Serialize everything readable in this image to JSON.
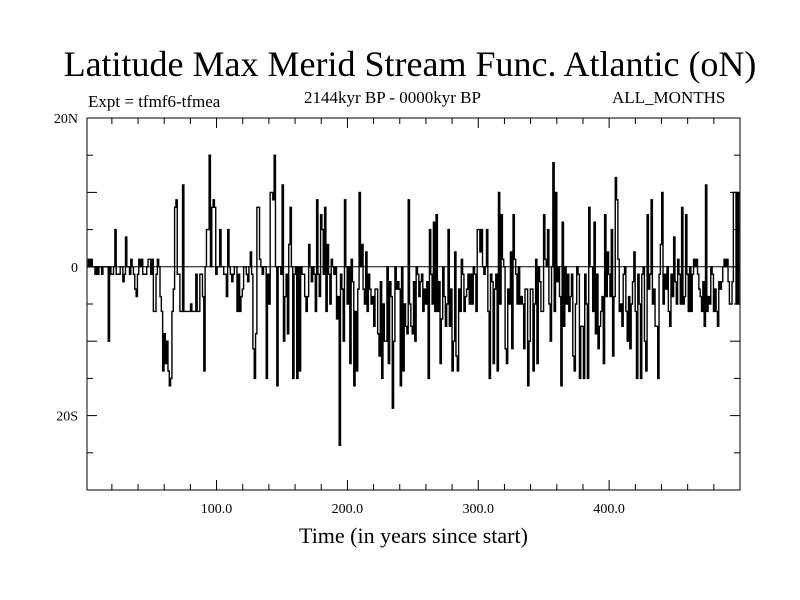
{
  "chart_data": {
    "type": "line",
    "title": "Latitude Max Merid Stream Func. Atlantic (oN)",
    "subtitle_left": "Expt = tfmf6-tfmea",
    "subtitle_center": "2144kyr BP - 0000kyr BP",
    "subtitle_right": "ALL_MONTHS",
    "xlabel": "Time (in years since start)",
    "ylabel": "",
    "xlim": [
      1,
      500
    ],
    "ylim": [
      -30,
      20
    ],
    "x_ticks": [
      100,
      200,
      300,
      400
    ],
    "x_tick_labels": [
      "100.0",
      "200.0",
      "300.0",
      "400.0"
    ],
    "y_ticks": [
      20,
      0,
      -20
    ],
    "y_tick_labels": [
      "20N",
      "0",
      "20S"
    ],
    "step": true,
    "grid": false,
    "series": [
      {
        "values": [
          0,
          1,
          0,
          1,
          0,
          0,
          -1,
          0,
          -1,
          0,
          0,
          -1,
          0,
          0,
          0,
          0,
          -10,
          0,
          -1,
          -1,
          0,
          5,
          -1,
          -1,
          -1,
          0,
          0,
          -2,
          -1,
          4,
          0,
          0,
          -1,
          1,
          0,
          -1,
          -3,
          -4,
          -1,
          1,
          0,
          1,
          -1,
          -1,
          -1,
          0,
          1,
          1,
          -1,
          1,
          -6,
          -6,
          -1,
          1,
          0,
          -4,
          -6,
          -14,
          -9,
          -13,
          -10,
          -14,
          -16,
          -15,
          -6,
          -3,
          8,
          9,
          -1,
          -1,
          -6,
          -6,
          11,
          -6,
          -6,
          -6,
          -6,
          -6,
          -5,
          -6,
          -6,
          -6,
          -1,
          -6,
          -6,
          -1,
          -1,
          -4,
          -14,
          0,
          5,
          5,
          15,
          0,
          8,
          9,
          8,
          -1,
          0,
          0,
          5,
          0,
          0,
          -1,
          -1,
          -4,
          5,
          0,
          -1,
          -2,
          -1,
          0,
          0,
          -6,
          -1,
          -6,
          -4,
          -3,
          0,
          0,
          -1,
          -2,
          0,
          2,
          -1,
          -11,
          -15,
          -9,
          8,
          8,
          1,
          0,
          -1,
          0,
          0,
          -15,
          -1,
          -5,
          10,
          10,
          9,
          15,
          0,
          -16,
          0,
          0,
          -1,
          11,
          -10,
          -4,
          -1,
          -9,
          3,
          8,
          0,
          -15,
          -1,
          0,
          -15,
          0,
          -14,
          0,
          -1,
          -1,
          -4,
          -6,
          -4,
          3,
          0,
          -2,
          0,
          -1,
          -6,
          9,
          -1,
          -4,
          7,
          5,
          -1,
          8,
          -6,
          3,
          -1,
          -5,
          1,
          0,
          -1,
          0,
          -7,
          -4,
          -24,
          -1,
          -3,
          -10,
          9,
          0,
          -5,
          0,
          -13,
          1,
          -2,
          -16,
          -6,
          -14,
          -3,
          10,
          0,
          3,
          -3,
          -5,
          2,
          -6,
          -1,
          -3,
          -5,
          -4,
          -8,
          -3,
          -3,
          -9,
          -12,
          -2,
          -15,
          -5,
          -10,
          -10,
          0,
          -13,
          -2,
          -4,
          -19,
          -10,
          0,
          -3,
          -2,
          -3,
          -16,
          0,
          -14,
          -5,
          -8,
          -9,
          9,
          -5,
          -8,
          -9,
          -2,
          -10,
          0,
          -1,
          -4,
          -2,
          -1,
          -6,
          -3,
          -5,
          -2,
          -15,
          5,
          -1,
          -5,
          6,
          -6,
          7,
          -6,
          -2,
          -13,
          -7,
          0,
          -4,
          -8,
          -5,
          5,
          -8,
          -3,
          -14,
          -10,
          2,
          -12,
          -14,
          -3,
          -6,
          1,
          -1,
          -6,
          -4,
          -3,
          -1,
          -5,
          -1,
          -5,
          0,
          -1,
          -6,
          5,
          5,
          2,
          5,
          0,
          -1,
          0,
          5,
          -6,
          -15,
          -1,
          -2,
          -13,
          -3,
          -1,
          -14,
          10,
          -5,
          7,
          1,
          0,
          -11,
          -13,
          -3,
          -5,
          2,
          -11,
          7,
          1,
          -1,
          -5,
          0,
          -5,
          -4,
          -5,
          -11,
          -3,
          -3,
          -16,
          -10,
          -3,
          -3,
          -14,
          -5,
          1,
          -13,
          0,
          -2,
          -6,
          -6,
          7,
          1,
          0,
          5,
          -5,
          -10,
          0,
          14,
          -6,
          10,
          -2,
          0,
          -4,
          -16,
          6,
          -8,
          0,
          -5,
          -1,
          -6,
          -4,
          -1,
          -12,
          -14,
          -5,
          0,
          -1,
          -15,
          -8,
          -8,
          -15,
          -1,
          -5,
          -15,
          8,
          0,
          0,
          -6,
          6,
          -9,
          -1,
          -11,
          -8,
          -6,
          -4,
          -13,
          7,
          -4,
          2,
          -1,
          -4,
          5,
          -12,
          -4,
          12,
          9,
          1,
          -6,
          -5,
          -8,
          -1,
          0,
          -6,
          -10,
          -4,
          -11,
          -5,
          -2,
          2,
          -6,
          -15,
          -1,
          -5,
          -15,
          -1,
          0,
          -10,
          -14,
          7,
          -3,
          -1,
          9,
          -5,
          -3,
          -8,
          -8,
          -15,
          -1,
          3,
          10,
          -5,
          -1,
          -3,
          0,
          -6,
          -8,
          -1,
          -4,
          4,
          -2,
          -5,
          1,
          -1,
          -5,
          8,
          -5,
          -4,
          7,
          -1,
          -6,
          0,
          -6,
          -1,
          1,
          0,
          1,
          -1,
          -3,
          -4,
          -6,
          -2,
          -8,
          11,
          -6,
          -4,
          -5,
          0,
          -1,
          -6,
          -3,
          -6,
          -8,
          -2,
          -3,
          -2,
          0,
          1,
          0,
          1,
          -2,
          -5,
          -5,
          -2,
          10,
          10,
          -5,
          10,
          -5
        ]
      }
    ]
  }
}
